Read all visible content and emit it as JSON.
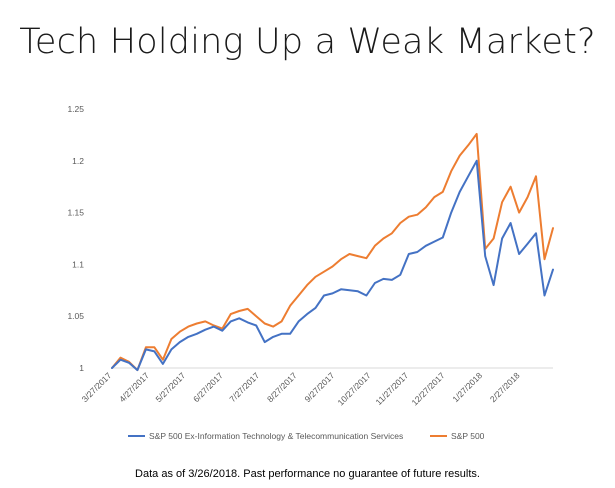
{
  "title": "Tech Holding Up a Weak Market?",
  "footnote": "Data as of 3/26/2018. Past performance no guarantee of future results.",
  "colors": {
    "series_1": "#4472C4",
    "series_2": "#ED7D31",
    "axis": "#d9d9d9",
    "tick_text": "#595959"
  },
  "chart_data": {
    "type": "line",
    "title": "Tech Holding Up a Weak Market?",
    "xlabel": "",
    "ylabel": "",
    "grid": false,
    "legend_position": "bottom",
    "ylim": [
      1,
      1.25
    ],
    "y_ticks": [
      "1",
      "1.05",
      "1.1",
      "1.15",
      "1.2",
      "1.25"
    ],
    "x_tick_labels": [
      "3/27/2017",
      "4/27/2017",
      "5/27/2017",
      "6/27/2017",
      "7/27/2017",
      "8/27/2017",
      "9/27/2017",
      "10/27/2017",
      "11/27/2017",
      "12/27/2017",
      "1/27/2018",
      "2/27/2018"
    ],
    "x": [
      "2017-03-27",
      "2017-04-03",
      "2017-04-10",
      "2017-04-17",
      "2017-04-24",
      "2017-05-01",
      "2017-05-08",
      "2017-05-15",
      "2017-05-22",
      "2017-05-29",
      "2017-06-05",
      "2017-06-12",
      "2017-06-19",
      "2017-06-26",
      "2017-07-03",
      "2017-07-10",
      "2017-07-17",
      "2017-07-24",
      "2017-07-31",
      "2017-08-07",
      "2017-08-14",
      "2017-08-21",
      "2017-08-28",
      "2017-09-04",
      "2017-09-11",
      "2017-09-18",
      "2017-09-25",
      "2017-10-02",
      "2017-10-09",
      "2017-10-16",
      "2017-10-23",
      "2017-10-30",
      "2017-11-06",
      "2017-11-13",
      "2017-11-20",
      "2017-11-27",
      "2017-12-04",
      "2017-12-11",
      "2017-12-18",
      "2017-12-25",
      "2018-01-01",
      "2018-01-08",
      "2018-01-15",
      "2018-01-22",
      "2018-01-29",
      "2018-02-05",
      "2018-02-12",
      "2018-02-19",
      "2018-02-26",
      "2018-03-05",
      "2018-03-12",
      "2018-03-19",
      "2018-03-26"
    ],
    "series": [
      {
        "name": "S&P 500 Ex-Information Technology & Telecommunication Services",
        "color": "#4472C4",
        "values": [
          1.0,
          1.008,
          1.005,
          0.998,
          1.018,
          1.016,
          1.004,
          1.018,
          1.025,
          1.03,
          1.033,
          1.037,
          1.04,
          1.036,
          1.045,
          1.048,
          1.044,
          1.041,
          1.025,
          1.03,
          1.033,
          1.033,
          1.045,
          1.052,
          1.058,
          1.07,
          1.072,
          1.076,
          1.075,
          1.074,
          1.07,
          1.082,
          1.086,
          1.085,
          1.09,
          1.11,
          1.112,
          1.118,
          1.122,
          1.126,
          1.15,
          1.17,
          1.185,
          1.2,
          1.108,
          1.08,
          1.125,
          1.14,
          1.11,
          1.12,
          1.13,
          1.07,
          1.095
        ]
      },
      {
        "name": "S&P 500",
        "color": "#ED7D31",
        "values": [
          1.0,
          1.01,
          1.006,
          0.998,
          1.02,
          1.02,
          1.008,
          1.028,
          1.035,
          1.04,
          1.043,
          1.045,
          1.041,
          1.038,
          1.052,
          1.055,
          1.057,
          1.05,
          1.043,
          1.04,
          1.045,
          1.06,
          1.07,
          1.08,
          1.088,
          1.093,
          1.098,
          1.105,
          1.11,
          1.108,
          1.106,
          1.118,
          1.125,
          1.13,
          1.14,
          1.146,
          1.148,
          1.155,
          1.165,
          1.17,
          1.19,
          1.205,
          1.215,
          1.226,
          1.115,
          1.125,
          1.16,
          1.175,
          1.15,
          1.165,
          1.185,
          1.105,
          1.135
        ]
      }
    ]
  }
}
